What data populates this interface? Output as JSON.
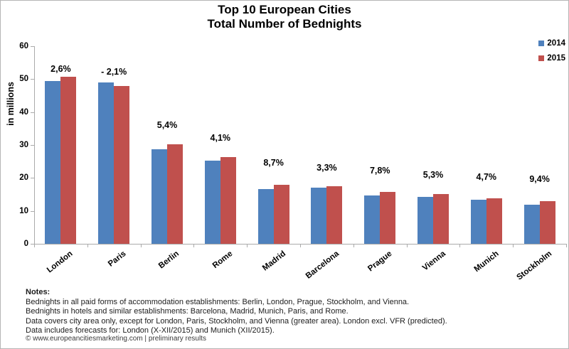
{
  "title": {
    "line1": "Top 10 European Cities",
    "line2": "Total Number of Bednights"
  },
  "legend": [
    {
      "label": "2014",
      "color": "#4F81BD"
    },
    {
      "label": "2015",
      "color": "#C0504D"
    }
  ],
  "axis": {
    "ylabel": "in millions",
    "yticks": [
      0,
      10,
      20,
      30,
      40,
      50,
      60
    ],
    "ymax": 60
  },
  "chart_data": {
    "type": "bar",
    "title": "Top 10 European Cities – Total Number of Bednights",
    "ylabel": "in millions",
    "ylim": [
      0,
      60
    ],
    "grid": false,
    "legend_position": "top-right",
    "categories": [
      "London",
      "Paris",
      "Berlin",
      "Rome",
      "Madrid",
      "Barcelona",
      "Prague",
      "Vienna",
      "Munich",
      "Stockholm"
    ],
    "series": [
      {
        "name": "2014",
        "color": "#4F81BD",
        "values": [
          49.4,
          48.9,
          28.7,
          25.3,
          16.6,
          17.0,
          14.7,
          14.3,
          13.3,
          11.9
        ]
      },
      {
        "name": "2015",
        "color": "#C0504D",
        "values": [
          50.7,
          47.9,
          30.2,
          26.3,
          18.0,
          17.5,
          15.8,
          15.1,
          13.9,
          13.0
        ]
      }
    ],
    "change_labels": [
      "2,6%",
      "- 2,1%",
      "5,4%",
      "4,1%",
      "8,7%",
      "3,3%",
      "7,8%",
      "5,3%",
      "4,7%",
      "9,4%"
    ]
  },
  "notes": {
    "heading": "Notes:",
    "lines": [
      "Bednights in all paid forms of accommodation establishments: Berlin, London, Prague, Stockholm, and Vienna.",
      "Bednights in hotels and similar establishments: Barcelona, Madrid, Munich, Paris, and Rome.",
      "Data covers city area only, except for London, Paris, Stockholm, and Vienna (greater area). London excl. VFR (predicted).",
      "Data includes forecasts for: London (X-XII/2015) and Munich (XII/2015)."
    ]
  },
  "footer": "© www.europeancitiesmarketing.com | preliminary results"
}
